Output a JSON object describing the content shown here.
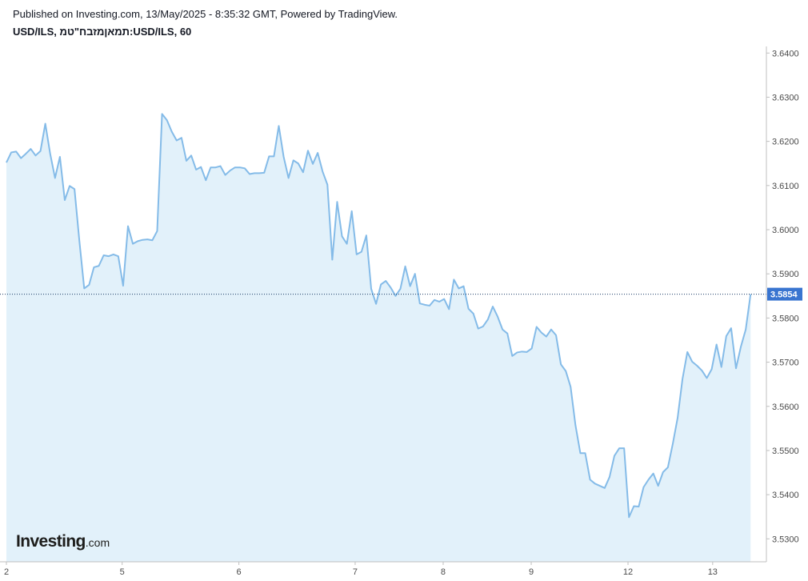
{
  "header": {
    "published_text": "Published on Investing.com, 13/May/2025 - 8:35:32 GMT, Powered by TradingView.",
    "symbol_text": "USD/ILS, תמאןמזבח\"טמ:USD/ILS, 60"
  },
  "watermark": {
    "brand": "Investing",
    "suffix": ".com"
  },
  "colors": {
    "line": "#84bbe8",
    "fill": "#e2f1fa",
    "last_price_badge": "#3975d0",
    "dotted_line": "#1a3b66",
    "axis": "#bfbfbf",
    "watermark_logo_accent": "#f0a500"
  },
  "chart_data": {
    "type": "area",
    "title": "USD/ILS, תמאןמזבח\"טמ:USD/ILS, 60",
    "xlabel": "",
    "ylabel": "",
    "ylim": [
      3.5248,
      3.6415
    ],
    "grid": false,
    "last_price_label": "3.5854",
    "y_ticks": [
      "3.6400",
      "3.6300",
      "3.6200",
      "3.6100",
      "3.6000",
      "3.5900",
      "3.5800",
      "3.5700",
      "3.5600",
      "3.5500",
      "3.5400",
      "3.5300"
    ],
    "x_ticks": [
      {
        "label": "2",
        "x": 0
      },
      {
        "label": "5",
        "x": 23.8
      },
      {
        "label": "6",
        "x": 47.8
      },
      {
        "label": "7",
        "x": 71.7
      },
      {
        "label": "8",
        "x": 89.8
      },
      {
        "label": "9",
        "x": 107.9
      },
      {
        "label": "12",
        "x": 127.8
      },
      {
        "label": "13",
        "x": 145.2
      }
    ],
    "series": [
      {
        "x": [
          0,
          1,
          2,
          3,
          4,
          5,
          6,
          7,
          8,
          9,
          10,
          11,
          12,
          13,
          14,
          15,
          16,
          17,
          18,
          19,
          20,
          21,
          22,
          23,
          24,
          25,
          26,
          27,
          28,
          29,
          30,
          31,
          32,
          33,
          34,
          35,
          36,
          37,
          38,
          39,
          40,
          41,
          42,
          43,
          44,
          45,
          46,
          47,
          48,
          49,
          50,
          51,
          52,
          53,
          54,
          55,
          56,
          57,
          58,
          59,
          60,
          61,
          62,
          63,
          64,
          65,
          66,
          67,
          68,
          69,
          70,
          71,
          72,
          73,
          74,
          75,
          76,
          77,
          78,
          79,
          80,
          81,
          82,
          83,
          84,
          85,
          86,
          87,
          88,
          89,
          90,
          91,
          92,
          93,
          94,
          95,
          96,
          97,
          98,
          99,
          100,
          101,
          102,
          103,
          104,
          105,
          106,
          107,
          108,
          109,
          110,
          111,
          112,
          113,
          114,
          115,
          116,
          117,
          118,
          119,
          120,
          121,
          122,
          123,
          124,
          125,
          126,
          127,
          128,
          129,
          130,
          131,
          132,
          133,
          134,
          135,
          136,
          137,
          138,
          139,
          140,
          141,
          142,
          143,
          144,
          145,
          146,
          147,
          148,
          149,
          150,
          151,
          152,
          153
        ],
        "values": [
          3.6152,
          3.6175,
          3.6177,
          3.6162,
          3.6172,
          3.6183,
          3.6168,
          3.6178,
          3.624,
          3.6172,
          3.6117,
          3.6165,
          3.6067,
          3.6099,
          3.6092,
          3.5975,
          3.5867,
          3.5875,
          3.5915,
          3.5918,
          3.5942,
          3.594,
          3.5944,
          3.594,
          3.5873,
          3.6008,
          3.5968,
          3.5974,
          3.5977,
          3.5978,
          3.5976,
          3.5997,
          3.6262,
          3.6248,
          3.6222,
          3.6202,
          3.6208,
          3.6156,
          3.6168,
          3.6136,
          3.6142,
          3.6112,
          3.6141,
          3.6141,
          3.6144,
          3.6124,
          3.6134,
          3.6141,
          3.6141,
          3.6139,
          3.6126,
          3.6128,
          3.6128,
          3.6129,
          3.6166,
          3.6166,
          3.6235,
          3.6165,
          3.6117,
          3.6157,
          3.615,
          3.613,
          3.6179,
          3.6149,
          3.6174,
          3.6132,
          3.6102,
          3.5932,
          3.6063,
          3.5985,
          3.5968,
          3.6042,
          3.5944,
          3.595,
          3.5987,
          3.5866,
          3.5832,
          3.5876,
          3.5884,
          3.5869,
          3.585,
          3.5866,
          3.5917,
          3.5872,
          3.59,
          3.5833,
          3.583,
          3.5828,
          3.5841,
          3.5837,
          3.5843,
          3.582,
          3.5887,
          3.5867,
          3.5872,
          3.5821,
          3.581,
          3.5776,
          3.5781,
          3.5797,
          3.5826,
          3.5803,
          3.5774,
          3.5765,
          3.5714,
          3.5722,
          3.5724,
          3.5723,
          3.5731,
          3.578,
          3.5767,
          3.5758,
          3.5774,
          3.5761,
          3.5695,
          3.568,
          3.5644,
          3.5557,
          3.5494,
          3.5494,
          3.5434,
          3.5425,
          3.542,
          3.5415,
          3.544,
          3.5488,
          3.5505,
          3.5505,
          3.5349,
          3.5374,
          3.5373,
          3.5417,
          3.5434,
          3.5448,
          3.542,
          3.5451,
          3.5462,
          3.5515,
          3.5574,
          3.5662,
          3.5723,
          3.5701,
          3.5692,
          3.5681,
          3.5664,
          3.5684,
          3.574,
          3.5689,
          3.5759,
          3.5777,
          3.5686,
          3.5735,
          3.5774,
          3.5854
        ]
      }
    ]
  }
}
